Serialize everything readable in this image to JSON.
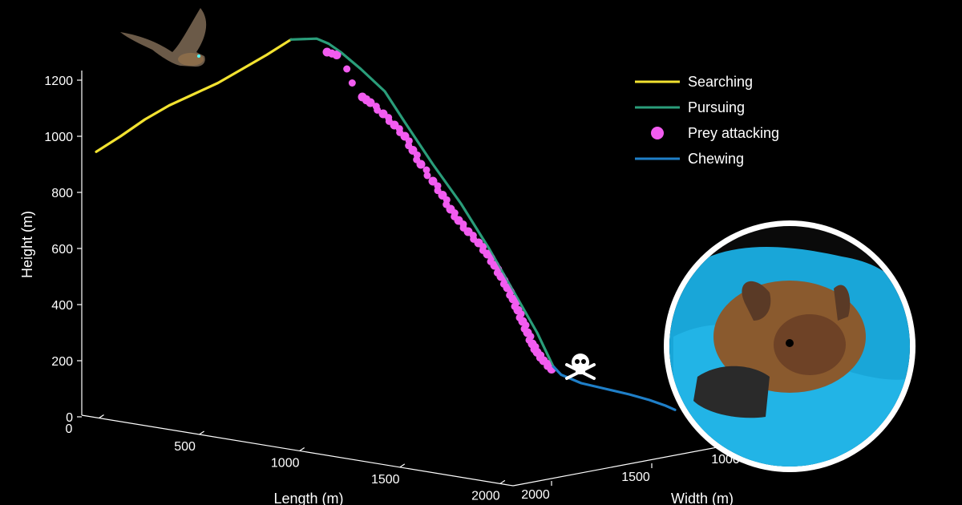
{
  "chart_data": {
    "type": "line",
    "title": "",
    "y_axis": {
      "label": "Height (m)",
      "ticks": [
        0,
        200,
        400,
        600,
        800,
        1000,
        1200
      ],
      "range": [
        0,
        1300
      ]
    },
    "length_axis": {
      "label": "Length (m)",
      "ticks": [
        0,
        500,
        1000,
        1500,
        2000
      ]
    },
    "width_axis": {
      "label": "Width (m)",
      "ticks": [
        2000,
        1500,
        1000
      ]
    },
    "legend": {
      "placement": "top-right",
      "entries": [
        {
          "label": "Searching",
          "color": "#f2e230",
          "marker": "line"
        },
        {
          "label": "Pursuing",
          "color": "#2a9d7a",
          "marker": "line"
        },
        {
          "label": "Prey attacking",
          "color": "#f25cf0",
          "marker": "dot"
        },
        {
          "label": "Chewing",
          "color": "#1f7fc8",
          "marker": "line"
        }
      ]
    },
    "series": [
      {
        "name": "Searching",
        "color": "#f2e230",
        "height": [
          945,
          1000,
          1060,
          1110,
          1150,
          1190,
          1240,
          1290,
          1345
        ]
      },
      {
        "name": "Pursuing",
        "color": "#2a9d7a",
        "height": [
          1345,
          1348,
          1330,
          1300,
          1240,
          1160,
          1050,
          900,
          760,
          600,
          450,
          300,
          180
        ]
      },
      {
        "name": "Prey attacking",
        "color": "#f25cf0",
        "height": [
          1300,
          1290,
          1140,
          1120,
          1080,
          1040,
          1000,
          950,
          900,
          840,
          790,
          740,
          700,
          660,
          620,
          580,
          540,
          500,
          460,
          420,
          380,
          340,
          300,
          260,
          230,
          200,
          170
        ]
      },
      {
        "name": "Chewing",
        "color": "#1f7fc8",
        "height": [
          180,
          150,
          120,
          100,
          80,
          60,
          40,
          25
        ]
      }
    ],
    "annotations": [
      {
        "type": "skull-icon",
        "meaning": "prey killed"
      }
    ]
  }
}
